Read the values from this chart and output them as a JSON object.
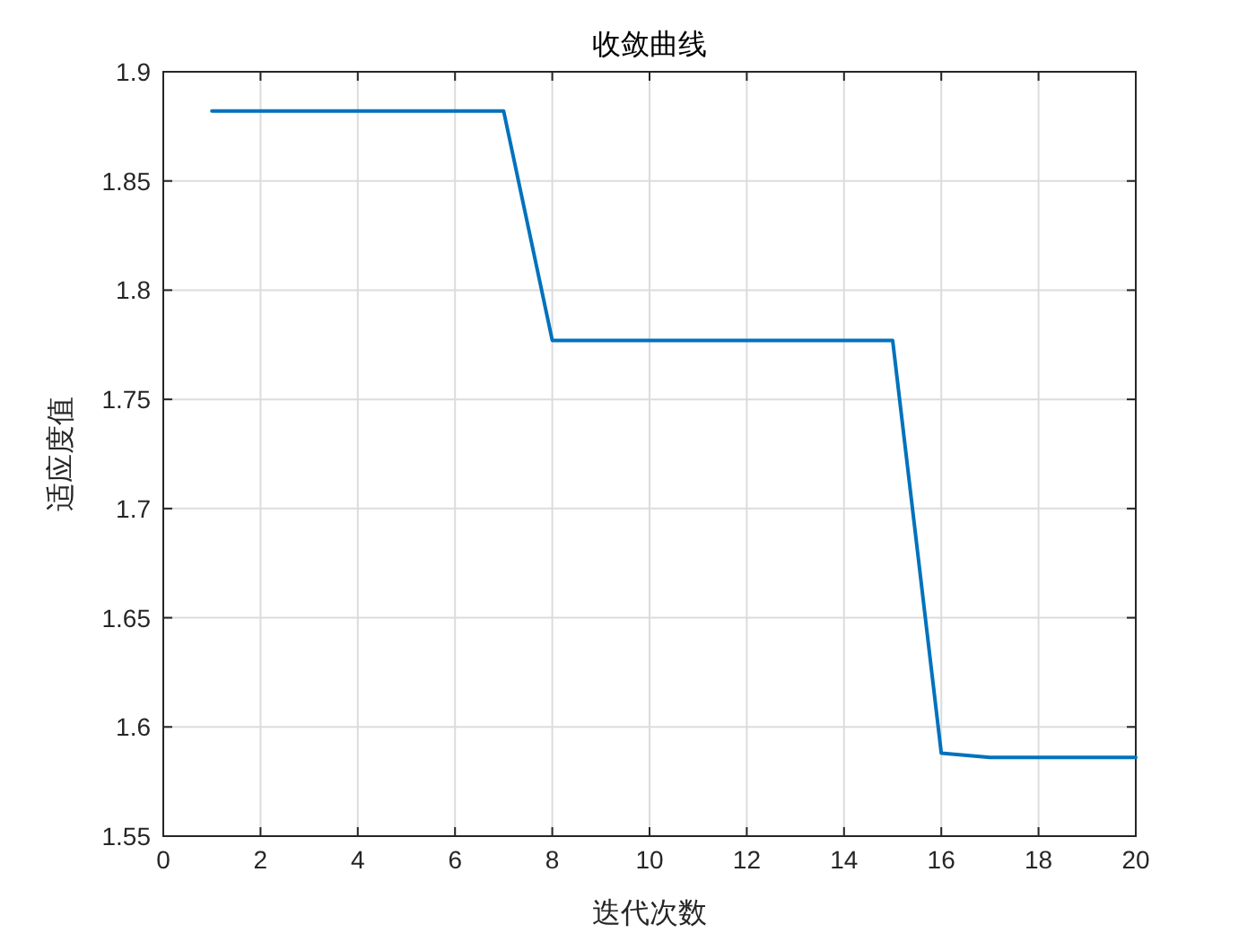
{
  "chart_data": {
    "type": "line",
    "title": "收敛曲线",
    "xlabel": "迭代次数",
    "ylabel": "适应度值",
    "x": [
      1,
      2,
      3,
      4,
      5,
      6,
      7,
      8,
      9,
      10,
      11,
      12,
      13,
      14,
      15,
      16,
      17,
      18,
      19,
      20
    ],
    "series": [
      {
        "color": "#0072bd",
        "values": [
          1.882,
          1.882,
          1.882,
          1.882,
          1.882,
          1.882,
          1.882,
          1.777,
          1.777,
          1.777,
          1.777,
          1.777,
          1.777,
          1.777,
          1.777,
          1.588,
          1.586,
          1.586,
          1.586,
          1.586
        ]
      }
    ],
    "xlim": [
      0,
      20
    ],
    "ylim": [
      1.55,
      1.9
    ],
    "xticks": [
      0,
      2,
      4,
      6,
      8,
      10,
      12,
      14,
      16,
      18,
      20
    ],
    "yticks": [
      1.55,
      1.6,
      1.65,
      1.7,
      1.75,
      1.8,
      1.85,
      1.9
    ],
    "grid": true,
    "marker": "none",
    "line_style": "solid"
  }
}
